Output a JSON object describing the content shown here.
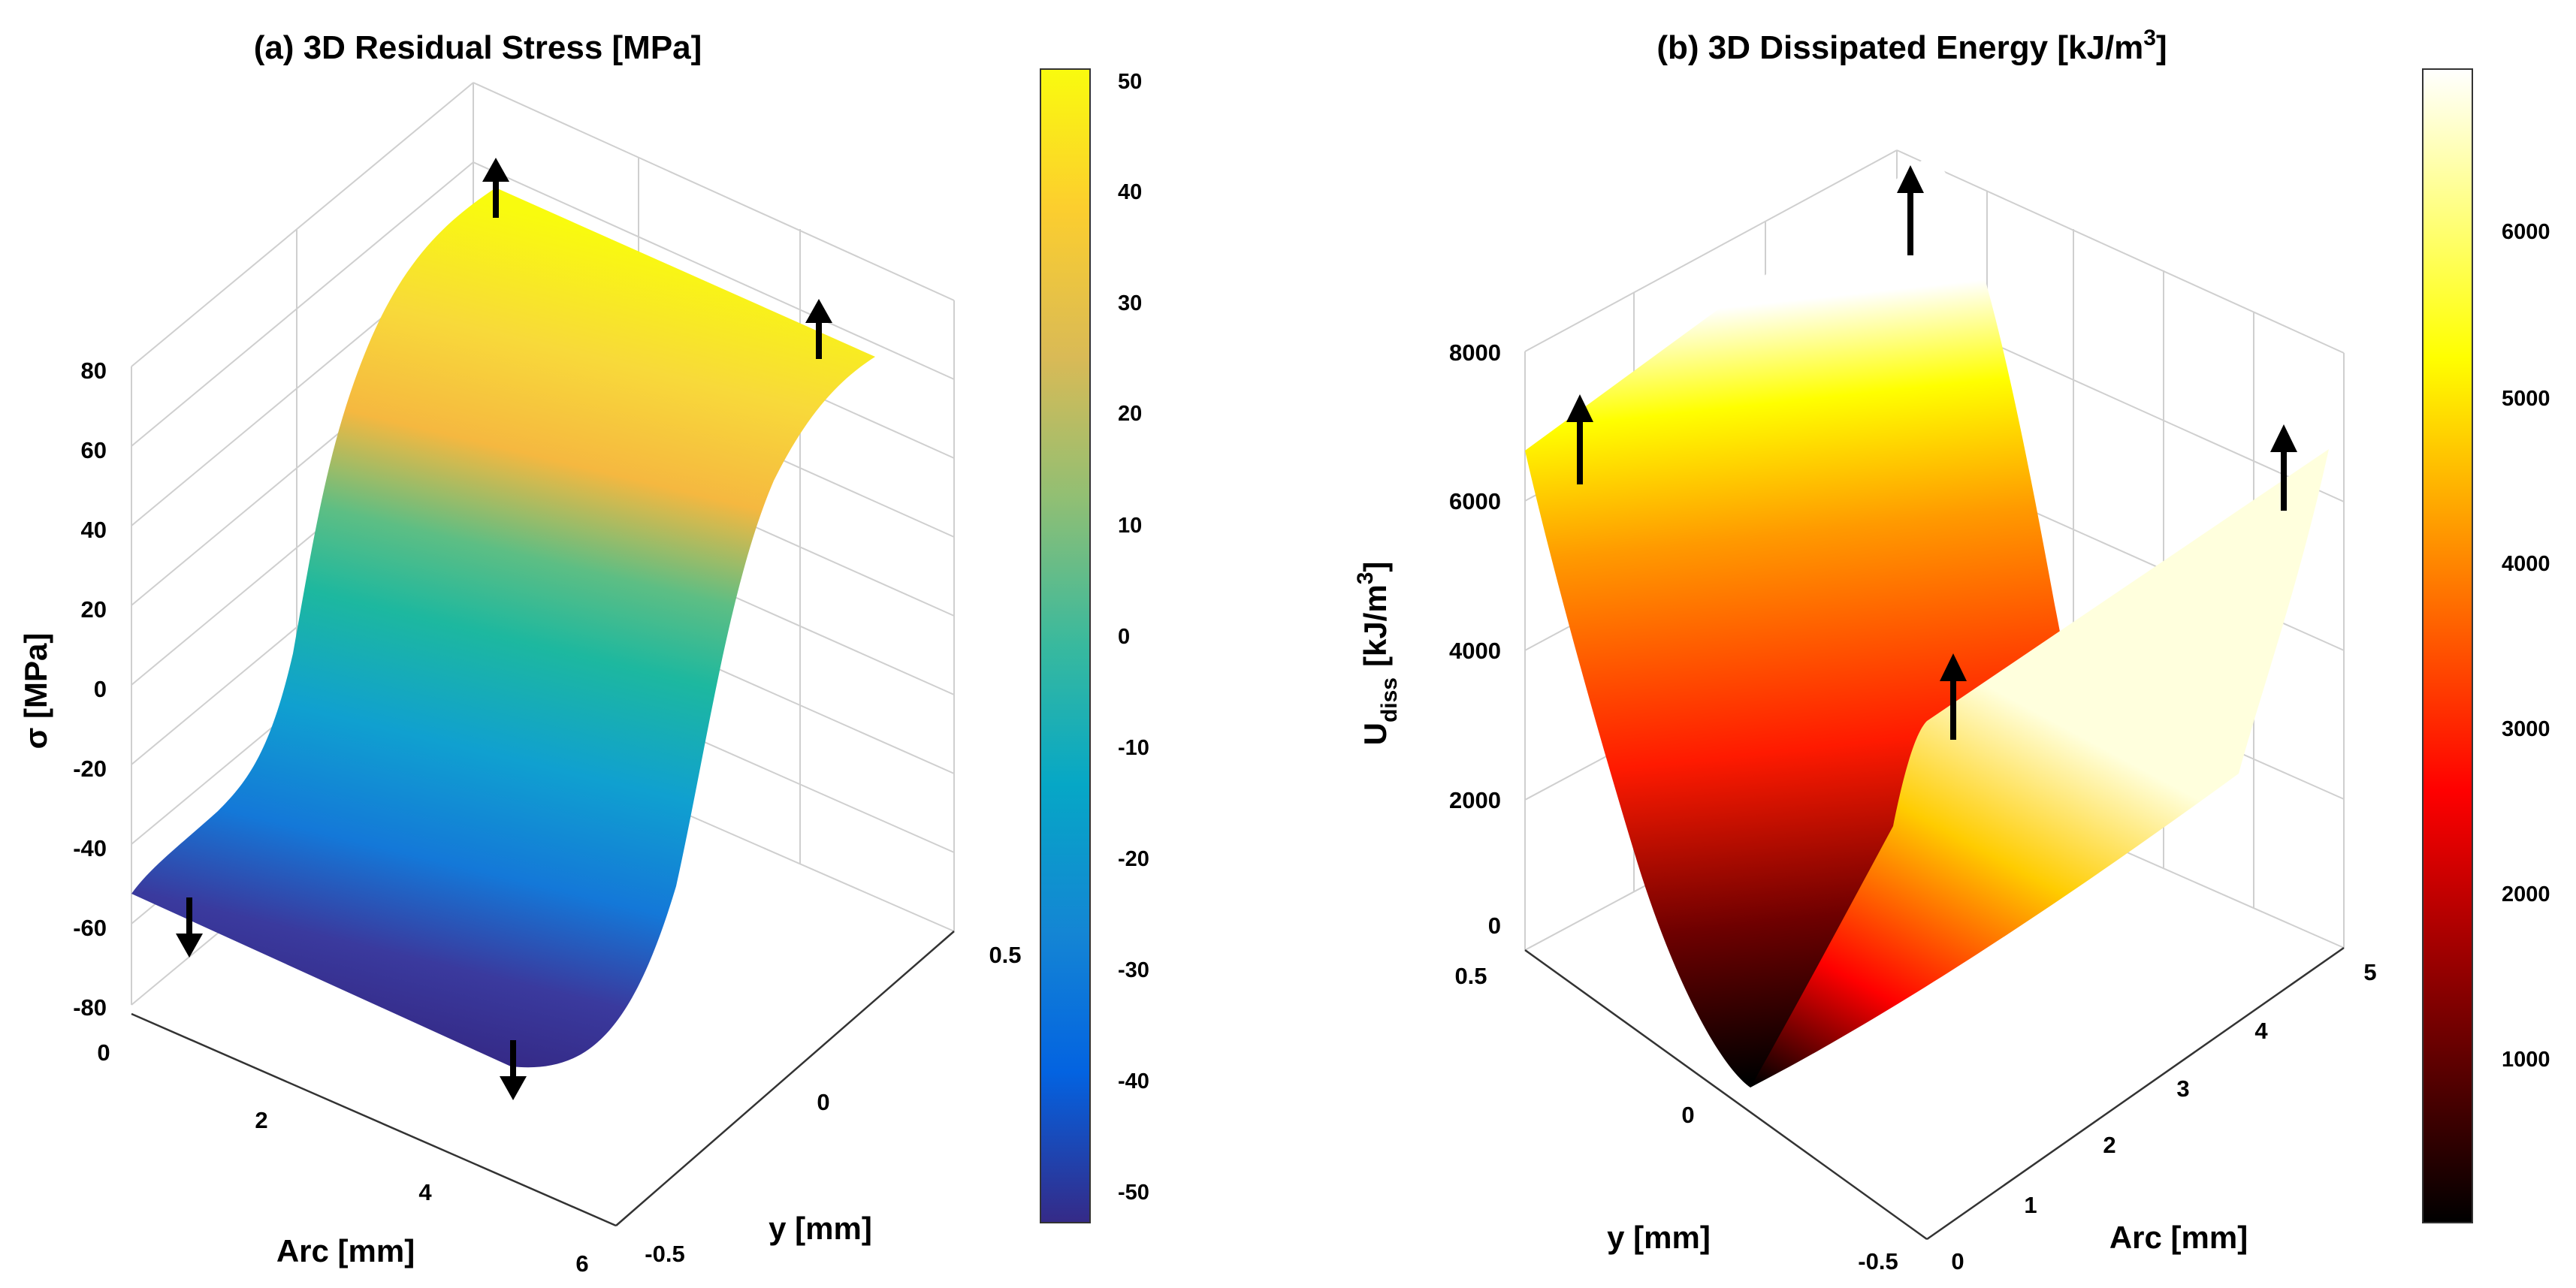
{
  "chart_data": [
    {
      "type": "surface",
      "title": "(a) 3D Residual Stress [MPa]",
      "xlabel": "Arc [mm]",
      "ylabel": "y [mm]",
      "zlabel": "σ [MPa]",
      "x_ticks": [
        "0",
        "2",
        "4",
        "6"
      ],
      "y_ticks": [
        "-0.5",
        "0",
        "0.5"
      ],
      "z_ticks": [
        "80",
        "60",
        "40",
        "20",
        "0",
        "-20",
        "-40",
        "-60",
        "-80"
      ],
      "xlim": [
        0,
        6
      ],
      "ylim": [
        -0.5,
        0.5
      ],
      "zlim": [
        -80,
        80
      ],
      "colormap": "parula",
      "colorbar_ticks": [
        "50",
        "40",
        "30",
        "20",
        "10",
        "0",
        "-10",
        "-20",
        "-30",
        "-40",
        "-50"
      ],
      "colorbar_range": [
        -52,
        52
      ],
      "profile": {
        "y": [
          -0.5,
          -0.4,
          -0.3,
          -0.2,
          -0.1,
          0.0,
          0.1,
          0.2,
          0.3,
          0.4,
          0.5
        ],
        "sigma": [
          -52,
          -50,
          -45,
          -35,
          -19,
          0,
          19,
          35,
          45,
          50,
          52
        ]
      },
      "arrows": [
        "up",
        "up",
        "down",
        "down"
      ]
    },
    {
      "type": "surface",
      "title": "(b) 3D Dissipated Energy [kJ/m",
      "title_sup": "3",
      "title_end": "]",
      "xlabel": "Arc [mm]",
      "ylabel": "y [mm]",
      "zlabel": "U",
      "zlabel_sub": "diss",
      "zlabel_unit": "[kJ/m",
      "zlabel_sup": "3",
      "zlabel_end": "]",
      "x_ticks": [
        "0",
        "1",
        "2",
        "3",
        "4",
        "5"
      ],
      "y_ticks": [
        "-0.5",
        "0",
        "0.5"
      ],
      "z_ticks": [
        "8000",
        "6000",
        "4000",
        "2000",
        "0"
      ],
      "xlim": [
        0,
        5
      ],
      "ylim": [
        -0.5,
        0.5
      ],
      "zlim": [
        0,
        8000
      ],
      "colormap": "hot",
      "colorbar_ticks": [
        "6000",
        "5000",
        "4000",
        "3000",
        "2000",
        "1000"
      ],
      "colorbar_range": [
        0,
        7000
      ],
      "profile": {
        "y": [
          -0.5,
          -0.4,
          -0.3,
          -0.2,
          -0.1,
          0.0,
          0.1,
          0.2,
          0.3,
          0.4,
          0.5
        ],
        "energy": [
          6900,
          4400,
          2500,
          1100,
          280,
          0,
          280,
          1100,
          2500,
          4400,
          6900
        ]
      },
      "arrows": [
        "up",
        "up",
        "up",
        "up"
      ]
    }
  ]
}
